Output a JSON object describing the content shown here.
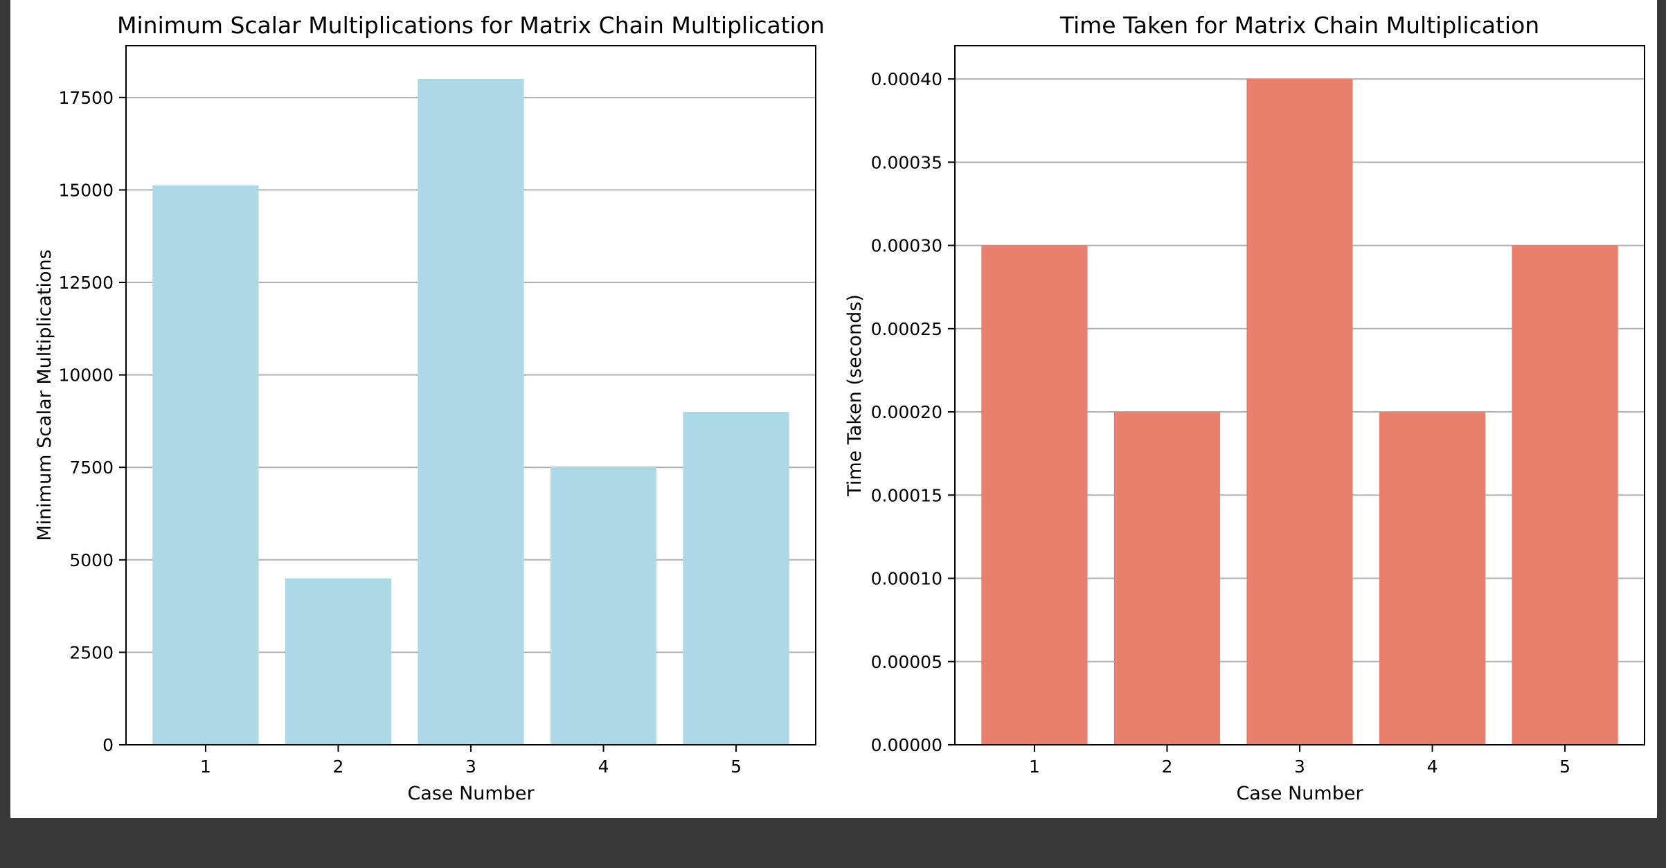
{
  "chart_data": [
    {
      "type": "bar",
      "title": "Minimum Scalar Multiplications for Matrix Chain Multiplication",
      "xlabel": "Case Number",
      "ylabel": "Minimum Scalar Multiplications",
      "categories": [
        "1",
        "2",
        "3",
        "4",
        "5"
      ],
      "values": [
        15125,
        4500,
        18000,
        7500,
        9000
      ],
      "ylim": [
        0,
        18900
      ],
      "yticks": [
        0,
        2500,
        5000,
        7500,
        10000,
        12500,
        15000,
        17500
      ],
      "ytick_labels": [
        "0",
        "2500",
        "5000",
        "7500",
        "10000",
        "12500",
        "15000",
        "17500"
      ],
      "color": "#add8e6",
      "grid": "y"
    },
    {
      "type": "bar",
      "title": "Time Taken for Matrix Chain Multiplication",
      "xlabel": "Case Number",
      "ylabel": "Time Taken (seconds)",
      "categories": [
        "1",
        "2",
        "3",
        "4",
        "5"
      ],
      "values": [
        0.0003,
        0.0002,
        0.0004,
        0.0002,
        0.0003
      ],
      "ylim": [
        0,
        0.00042
      ],
      "yticks": [
        0,
        5e-05,
        0.0001,
        0.00015,
        0.0002,
        0.00025,
        0.0003,
        0.00035,
        0.0004
      ],
      "ytick_labels": [
        "0.00000",
        "0.00005",
        "0.00010",
        "0.00015",
        "0.00020",
        "0.00025",
        "0.00030",
        "0.00035",
        "0.00040"
      ],
      "color": "#e9806e",
      "grid": "y"
    }
  ]
}
